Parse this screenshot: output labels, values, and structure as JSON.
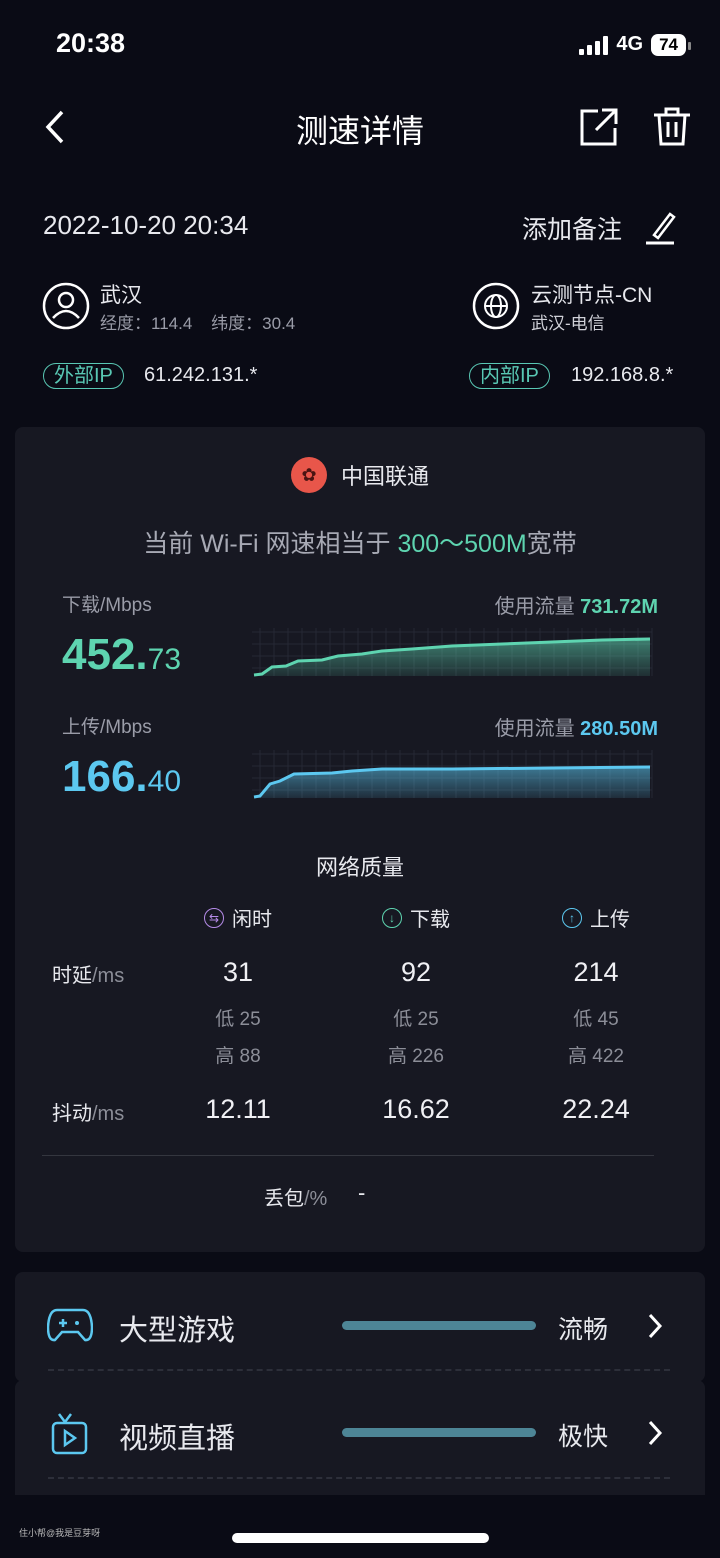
{
  "status": {
    "time": "20:38",
    "network": "4G",
    "battery": "74"
  },
  "header": {
    "title": "测速详情",
    "back": "back-icon",
    "share": "share-icon",
    "delete": "trash-icon"
  },
  "meta": {
    "datetime": "2022-10-20  20:34",
    "add_note": "添加备注",
    "city": "武汉",
    "coords": "经度：114.4    纬度：30.4",
    "node": "云测节点-CN",
    "node_sub": "武汉-电信",
    "ext_ip_label": "外部IP",
    "ext_ip": "61.242.131.*",
    "int_ip_label": "内部IP",
    "int_ip": "192.168.8.*"
  },
  "result": {
    "isp": "中国联通",
    "summary_prefix": "当前 Wi-Fi 网速相当于 ",
    "summary_value": "300～500M",
    "summary_suffix": "宽带",
    "download": {
      "label": "下载/Mbps",
      "int": "452.",
      "dec": "73",
      "usage_label": "使用流量",
      "usage": "731.72M",
      "color": "#5ed4b0"
    },
    "upload": {
      "label": "上传/Mbps",
      "int": "166.",
      "dec": "40",
      "usage_label": "使用流量",
      "usage": "280.50M",
      "color": "#5cc8f0"
    }
  },
  "quality": {
    "title": "网络质量",
    "cols": [
      "闲时",
      "下载",
      "上传"
    ],
    "latency_label": "时延",
    "latency_unit": "/ms",
    "latency": [
      {
        "v": "31",
        "low": "低 25",
        "high": "高 88"
      },
      {
        "v": "92",
        "low": "低 25",
        "high": "高 226"
      },
      {
        "v": "214",
        "low": "低 45",
        "high": "高 422"
      }
    ],
    "jitter_label": "抖动",
    "jitter_unit": "/ms",
    "jitter": [
      "12.11",
      "16.62",
      "22.24"
    ],
    "loss_label": "丢包",
    "loss_unit": "/%",
    "loss": "-"
  },
  "scenarios": [
    {
      "name": "大型游戏",
      "rating": "流畅",
      "level": 1.0
    },
    {
      "name": "视频直播",
      "rating": "极快",
      "level": 1.0
    }
  ],
  "watermark": "住小帮@我是豆芽呀"
}
